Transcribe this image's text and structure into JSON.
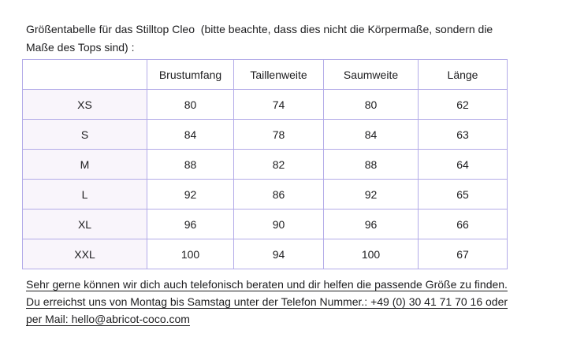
{
  "title": {
    "lines": [
      "Größentabelle für das Stilltop Cleo  (bitte beachte, dass dies nicht die Körpermaße, sondern die",
      "Maße des Tops sind) :"
    ]
  },
  "table": {
    "corner_label": "",
    "columns": [
      "Brustumfang",
      "Taillenweite",
      "Saumweite",
      "Länge"
    ],
    "rows": [
      {
        "label": "XS",
        "values": [
          "80",
          "74",
          "80",
          "62"
        ]
      },
      {
        "label": "S",
        "values": [
          "84",
          "78",
          "84",
          "63"
        ]
      },
      {
        "label": "M",
        "values": [
          "88",
          "82",
          "88",
          "64"
        ]
      },
      {
        "label": "L",
        "values": [
          "92",
          "86",
          "92",
          "65"
        ]
      },
      {
        "label": "XL",
        "values": [
          "96",
          "90",
          "96",
          "66"
        ]
      },
      {
        "label": "XXL",
        "values": [
          "100",
          "94",
          "100",
          "67"
        ]
      }
    ]
  },
  "footer": {
    "lines": [
      "Sehr gerne können wir dich auch telefonisch beraten und dir helfen die passende Größe zu finden.",
      "Du erreichst uns von Montag bis Samstag unter der Telefon Nummer.: +49 (0) 30 41 71 70 16 oder",
      "per Mail: hello@abricot-coco.com"
    ],
    "phone": "+49 (0) 30 41 71 70 16",
    "email": "hello@abricot-coco.com"
  },
  "colors": {
    "table_border": "#b3abe8",
    "label_cell_background": "#f9f5fb",
    "text": "#1d1d1f",
    "page_background": "#ffffff"
  }
}
